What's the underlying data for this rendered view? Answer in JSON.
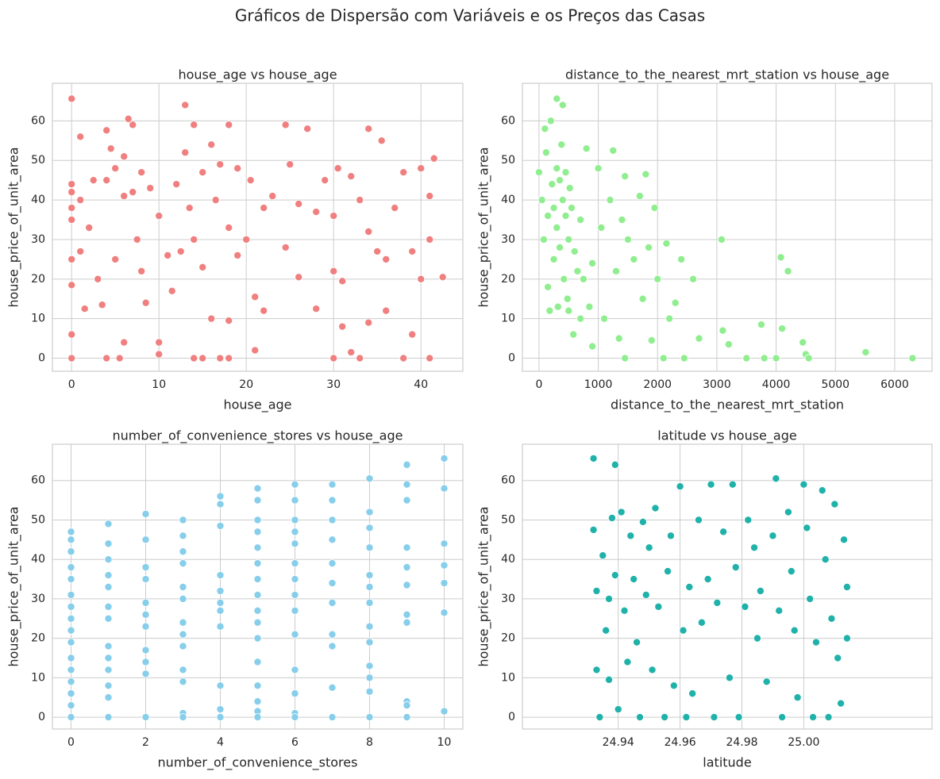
{
  "title": "Gráficos de Dispersão com Variáveis e os Preços das Casas",
  "chart_data": [
    {
      "type": "scatter",
      "title": "house_age vs house_age",
      "x_label": "house_age",
      "y_label": "house_price_of_unit_area",
      "color": "#f08080",
      "grid": true,
      "xlim": [
        -2.2,
        44.8
      ],
      "ylim": [
        -3.3,
        69.5
      ],
      "xticks": [
        0,
        10,
        20,
        30,
        40
      ],
      "yticks": [
        0,
        10,
        20,
        30,
        40,
        50,
        60
      ],
      "x": [
        0,
        0,
        0,
        0,
        0,
        0,
        0,
        0,
        0,
        1,
        1,
        1,
        1.5,
        2,
        2.5,
        3,
        3.5,
        4,
        4,
        4,
        4.5,
        5,
        5,
        5.5,
        6,
        6,
        6,
        6.5,
        7,
        7,
        7.5,
        8,
        8,
        8.5,
        9,
        10,
        10,
        10,
        11,
        11.5,
        12,
        12.5,
        13,
        13,
        13.5,
        14,
        14,
        14,
        15,
        15,
        16,
        16,
        16.5,
        17,
        17,
        18,
        18,
        18,
        19,
        19,
        20,
        20.5,
        21,
        21,
        22,
        22,
        23,
        24.5,
        24.5,
        25,
        26,
        26,
        27,
        28,
        28,
        29,
        30,
        30,
        30.5,
        31,
        31,
        32,
        32,
        33,
        33,
        34,
        34,
        35,
        35.5,
        36,
        36,
        37,
        38,
        38,
        39,
        39,
        40,
        40,
        41,
        41,
        41.5,
        41,
        42.5,
        15,
        18,
        30,
        34
      ],
      "values": [
        65.6,
        44,
        42,
        38,
        35,
        25,
        18.5,
        6,
        0,
        56,
        40,
        27,
        12.5,
        33,
        45,
        20,
        13.5,
        57.6,
        45,
        0,
        53,
        48,
        25,
        0,
        51,
        41,
        4,
        60.5,
        59,
        42,
        30,
        47,
        22,
        14,
        43,
        36,
        4,
        1,
        26,
        17,
        44,
        27,
        64,
        52,
        38,
        59,
        30,
        0,
        47,
        23,
        54,
        10,
        40,
        49,
        0,
        59,
        33,
        9.5,
        48,
        26,
        30,
        45,
        2,
        15.5,
        38,
        12,
        41,
        59,
        28,
        49,
        39,
        20.5,
        58,
        37,
        12.5,
        45,
        36,
        22,
        48,
        19.5,
        8,
        46,
        1.5,
        40,
        0,
        58,
        32,
        27,
        55,
        25,
        12,
        38,
        47,
        0,
        27,
        6,
        48,
        20,
        41,
        30,
        50.5,
        0,
        20.5,
        0,
        0,
        0,
        9
      ]
    },
    {
      "type": "scatter",
      "title": "distance_to_the_nearest_mrt_station vs house_age",
      "x_label": "distance_to_the_nearest_mrt_station",
      "y_label": "house_price_of_unit_area",
      "color": "#90ee90",
      "grid": true,
      "xlim": [
        -280,
        6630
      ],
      "ylim": [
        -3.3,
        69.5
      ],
      "xticks": [
        0,
        1000,
        2000,
        3000,
        4000,
        5000,
        6000
      ],
      "yticks": [
        0,
        10,
        20,
        30,
        40,
        50,
        60
      ],
      "x": [
        0,
        50,
        80,
        100,
        120,
        150,
        150,
        180,
        200,
        220,
        250,
        250,
        300,
        300,
        300,
        320,
        350,
        350,
        380,
        400,
        400,
        420,
        450,
        450,
        480,
        500,
        500,
        520,
        550,
        580,
        600,
        650,
        700,
        700,
        750,
        800,
        850,
        900,
        900,
        1000,
        1050,
        1100,
        1200,
        1250,
        1300,
        1350,
        1400,
        1450,
        1450,
        1500,
        1600,
        1700,
        1750,
        1800,
        1850,
        1900,
        1950,
        2000,
        2100,
        2150,
        2200,
        2300,
        2400,
        2450,
        2600,
        2700,
        3080,
        3100,
        3200,
        3500,
        3750,
        3800,
        4000,
        4080,
        4100,
        4200,
        4450,
        4500,
        4550,
        5510,
        6300
      ],
      "values": [
        47,
        40,
        30,
        58,
        52,
        36,
        18,
        12,
        60,
        44,
        38,
        25,
        65.6,
        48,
        33,
        13,
        45,
        28,
        54,
        64,
        40,
        20,
        36,
        47,
        15,
        30,
        12,
        43,
        38,
        6,
        27,
        22,
        35,
        10,
        20,
        53,
        13,
        3,
        24,
        48,
        33,
        10,
        40,
        52.5,
        22,
        5,
        35,
        46,
        0,
        30,
        25,
        41,
        15,
        46.5,
        28,
        4.5,
        38,
        20,
        0,
        29,
        10,
        14,
        25,
        0,
        20,
        5,
        30,
        7,
        3.5,
        0,
        8.5,
        0,
        0,
        25.5,
        7.5,
        22,
        4,
        1,
        0,
        1.5,
        0
      ]
    },
    {
      "type": "scatter",
      "title": "number_of_convenience_stores vs house_age",
      "x_label": "number_of_convenience_stores",
      "y_label": "house_price_of_unit_area",
      "color": "#87ceeb",
      "grid": true,
      "xlim": [
        -0.5,
        10.5
      ],
      "ylim": [
        -3.0,
        69.2
      ],
      "xticks": [
        0,
        2,
        4,
        6,
        8,
        10
      ],
      "yticks": [
        0,
        10,
        20,
        30,
        40,
        50,
        60
      ],
      "x": [
        0,
        0,
        0,
        0,
        0,
        0,
        0,
        0,
        0,
        0,
        0,
        0,
        0,
        0,
        0,
        0,
        1,
        1,
        1,
        1,
        1,
        1,
        1,
        1,
        1,
        1,
        1,
        1,
        1,
        2,
        2,
        2,
        2,
        2,
        2,
        2,
        2,
        2,
        2,
        2,
        3,
        3,
        3,
        3,
        3,
        3,
        3,
        3,
        3,
        3,
        3,
        3,
        3,
        4,
        4,
        4,
        4,
        4,
        4,
        4,
        4,
        4,
        4,
        4,
        5,
        5,
        5,
        5,
        5,
        5,
        5,
        5,
        5,
        5,
        5,
        5,
        5,
        5,
        5,
        5,
        6,
        6,
        6,
        6,
        6,
        6,
        6,
        6,
        6,
        6,
        6,
        6,
        6,
        6,
        7,
        7,
        7,
        7,
        7,
        7,
        7,
        7,
        7,
        7,
        7,
        8,
        8,
        8,
        8,
        8,
        8,
        8,
        8,
        8,
        8,
        8,
        8,
        8,
        9,
        9,
        9,
        9,
        9,
        9,
        9,
        9,
        9,
        9,
        9,
        10,
        10,
        10,
        10,
        10,
        10,
        10
      ],
      "values": [
        47,
        45,
        42,
        38,
        35,
        31,
        28,
        25,
        22,
        19,
        15,
        12,
        9,
        6,
        3,
        0,
        49,
        44,
        40,
        36,
        33,
        28,
        25,
        18,
        15,
        12,
        8,
        5,
        0,
        51.5,
        45,
        38,
        35,
        29,
        26,
        23,
        17,
        14,
        11,
        0,
        50,
        46,
        42,
        39,
        33,
        30,
        24,
        21,
        18,
        12,
        9,
        1,
        0,
        56,
        54,
        48.5,
        36,
        32,
        29,
        27,
        23,
        8,
        2,
        0,
        58,
        55,
        50,
        47,
        43,
        39,
        35,
        31,
        27,
        24,
        20,
        14,
        8,
        4,
        1.5,
        0,
        59,
        55,
        50,
        47,
        44,
        39,
        35,
        31,
        27,
        21,
        12,
        6,
        1,
        0,
        59,
        55,
        50,
        45,
        39,
        34,
        29,
        21,
        18,
        7.5,
        0,
        60.5,
        52,
        48,
        43,
        36,
        33,
        29,
        23,
        19,
        13,
        10,
        6.5,
        0,
        64,
        59,
        55,
        43,
        38,
        33.5,
        26,
        24,
        4,
        3,
        0,
        65.6,
        58,
        44,
        38.5,
        34,
        26.5,
        1.5
      ]
    },
    {
      "type": "scatter",
      "title": "latitude vs house_age",
      "x_label": "latitude",
      "y_label": "house_price_of_unit_area",
      "color": "#20b2aa",
      "grid": true,
      "xlim": [
        24.909,
        25.0415
      ],
      "ylim": [
        -3.0,
        69.2
      ],
      "xticks": [
        24.94,
        24.96,
        24.98,
        {
          "value": 25,
          "label": "25.00"
        }
      ],
      "yticks": [
        0,
        10,
        20,
        30,
        40,
        50,
        60
      ],
      "x": [
        24.932,
        24.932,
        24.933,
        24.933,
        24.934,
        24.935,
        24.936,
        24.937,
        24.937,
        24.938,
        24.939,
        24.939,
        24.94,
        24.941,
        24.942,
        24.943,
        24.944,
        24.945,
        24.946,
        24.947,
        24.948,
        24.949,
        24.95,
        24.951,
        24.952,
        24.953,
        24.955,
        24.956,
        24.957,
        24.958,
        24.96,
        24.961,
        24.962,
        24.963,
        24.964,
        24.966,
        24.967,
        24.969,
        24.97,
        24.971,
        24.972,
        24.974,
        24.976,
        24.977,
        24.978,
        24.979,
        24.981,
        24.982,
        24.984,
        24.985,
        24.986,
        24.988,
        24.99,
        24.991,
        24.992,
        24.993,
        24.995,
        24.996,
        24.997,
        24.998,
        25.0,
        25.001,
        25.002,
        25.003,
        25.004,
        25.006,
        25.007,
        25.008,
        25.009,
        25.01,
        25.011,
        25.012,
        25.013,
        25.014,
        25.014
      ],
      "values": [
        65.6,
        47.5,
        32,
        12,
        0,
        41,
        22,
        30,
        9.5,
        50.5,
        64,
        36,
        2,
        52,
        27,
        14,
        46,
        35,
        19,
        0,
        49.5,
        31,
        43,
        12,
        53,
        28,
        0,
        37,
        46,
        8,
        58.5,
        22,
        0,
        33,
        6,
        50,
        24,
        35,
        59,
        0,
        29,
        47,
        10,
        59,
        38,
        0,
        28,
        50,
        43,
        20,
        32,
        9,
        46,
        60.5,
        27,
        0,
        52,
        37,
        22,
        5,
        59,
        48,
        30,
        0,
        19,
        57.5,
        40,
        0,
        25,
        54,
        15,
        3.5,
        45,
        20,
        33
      ]
    }
  ]
}
